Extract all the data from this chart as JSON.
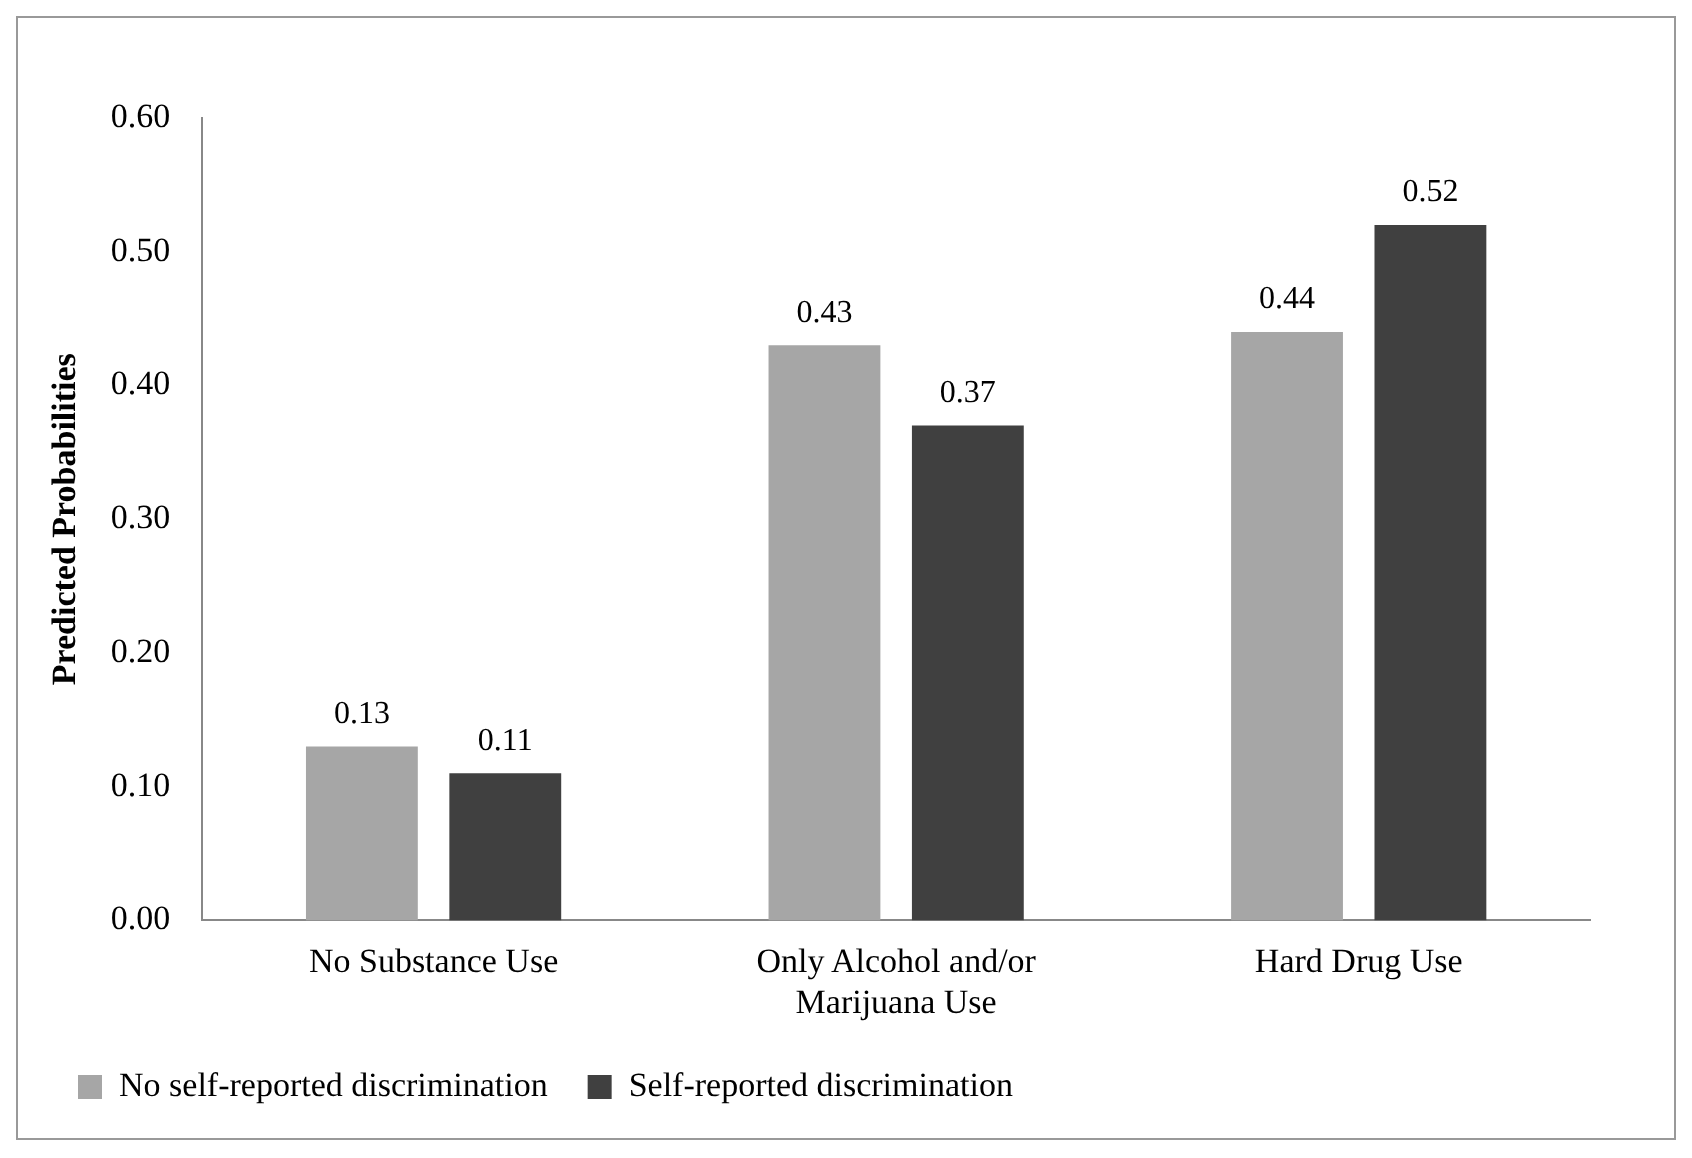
{
  "chart_data": {
    "type": "bar",
    "ylabel": "Predicted Probabilities",
    "categories": [
      "No Substance Use",
      "Only Alcohol and/or Marijuana Use",
      "Hard Drug Use"
    ],
    "series": [
      {
        "name": "No self-reported discrimination",
        "color": "#a6a6a6",
        "values": [
          0.13,
          0.43,
          0.44
        ]
      },
      {
        "name": "Self-reported discrimination",
        "color": "#404040",
        "values": [
          0.11,
          0.37,
          0.52
        ]
      }
    ],
    "ylim": [
      0,
      0.6
    ],
    "yticks": [
      {
        "value": 0,
        "label": "0.00"
      },
      {
        "value": 0.1,
        "label": "0.10"
      },
      {
        "value": 0.2,
        "label": "0.20"
      },
      {
        "value": 0.3,
        "label": "0.30"
      },
      {
        "value": 0.4,
        "label": "0.40"
      },
      {
        "value": 0.5,
        "label": "0.50"
      },
      {
        "value": 0.6,
        "label": "0.60"
      }
    ],
    "grid": false,
    "legend": "bottom left",
    "data_labels": true
  }
}
